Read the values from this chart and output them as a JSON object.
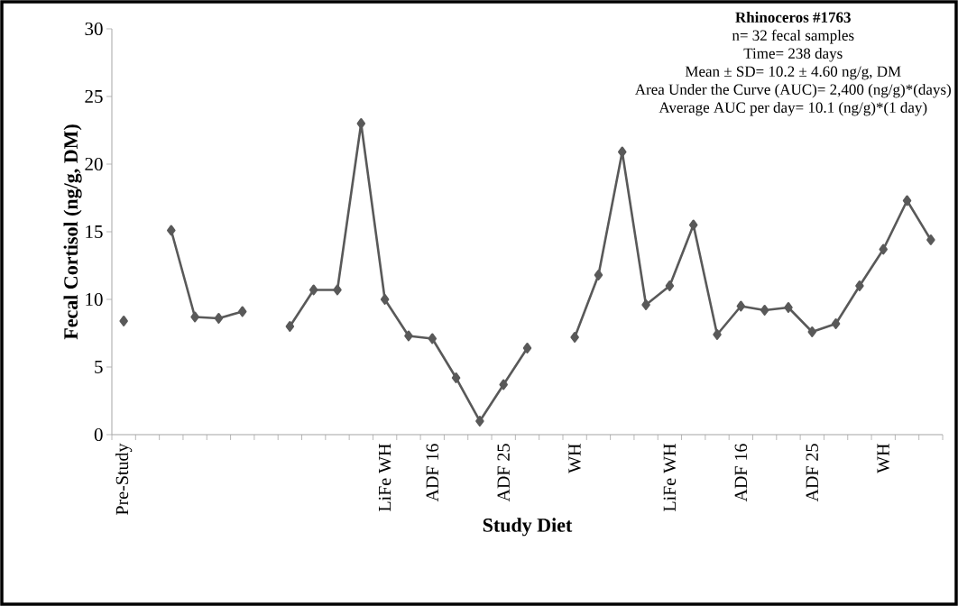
{
  "chart_data": {
    "type": "line",
    "title": "Rhinoceros #1763",
    "annotations": [
      "n= 32 fecal samples",
      "Time= 238 days",
      "Mean ± SD= 10.2 ± 4.60 ng/g, DM",
      "Area Under the Curve (AUC)= 2,400 (ng/g)*(days)",
      "Average AUC per day= 10.1 (ng/g)*(1 day)"
    ],
    "xlabel": "Study Diet",
    "ylabel": "Fecal Cortisol (ng/g, DM)",
    "categories": [
      "Pre-Study",
      null,
      null,
      null,
      null,
      null,
      null,
      null,
      null,
      null,
      null,
      "LiFe WH",
      null,
      "ADF 16",
      null,
      null,
      "ADF 25",
      null,
      null,
      "WH",
      null,
      null,
      null,
      "LiFe WH",
      null,
      null,
      "ADF 16",
      null,
      null,
      "ADF 25",
      null,
      null,
      "WH",
      null,
      null
    ],
    "series": [
      {
        "color": "#595959",
        "values": [
          8.4,
          null,
          15.1,
          8.7,
          8.6,
          9.1,
          null,
          8.0,
          10.7,
          10.7,
          23.0,
          10.0,
          7.3,
          7.1,
          4.2,
          1.0,
          3.7,
          6.4,
          null,
          7.2,
          11.8,
          20.9,
          9.6,
          11.0,
          15.5,
          7.4,
          9.5,
          9.2,
          9.4,
          7.6,
          8.2,
          11.0,
          13.7,
          17.3,
          14.4
        ]
      }
    ],
    "ylim": [
      0,
      30
    ],
    "yticks": [
      0,
      5,
      10,
      15,
      20,
      25,
      30
    ],
    "marker": "diamond",
    "line_style": "solid",
    "grid": false
  }
}
